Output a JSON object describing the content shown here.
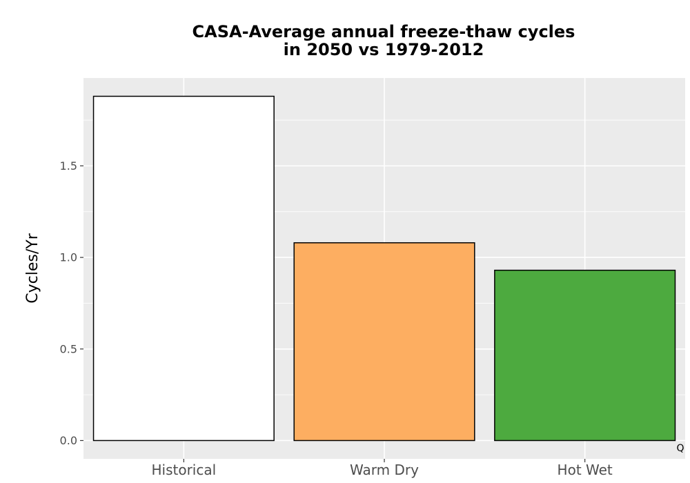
{
  "chart_data": {
    "type": "bar",
    "title": "CASA-Average annual freeze-thaw cycles in 2050 vs 1979-2012",
    "title_lines": [
      "CASA-Average annual freeze-thaw cycles",
      "in 2050 vs 1979-2012"
    ],
    "xlabel": "",
    "ylabel": "Cycles/Yr",
    "categories": [
      "Historical",
      "Warm Dry",
      "Hot Wet"
    ],
    "values": [
      1.88,
      1.08,
      0.93
    ],
    "bar_colors": [
      "#ffffff",
      "#fdae61",
      "#4daa3f"
    ],
    "ylim": [
      -0.1,
      1.98
    ],
    "yticks": [
      0.0,
      0.5,
      1.0,
      1.5
    ],
    "ytick_labels": [
      "0.0",
      "0.5",
      "1.0",
      "1.5"
    ],
    "grid": true,
    "panel_background": "#ebebeb",
    "corner_mark": "Q"
  }
}
